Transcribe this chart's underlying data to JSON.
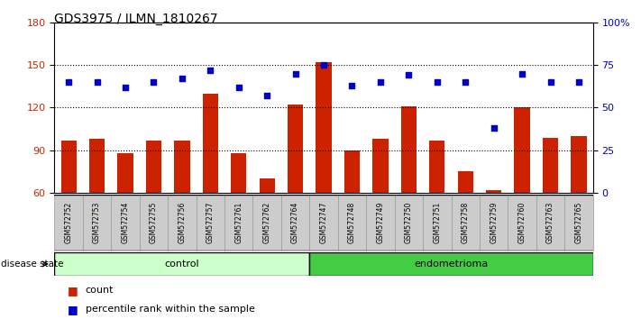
{
  "title": "GDS3975 / ILMN_1810267",
  "samples": [
    "GSM572752",
    "GSM572753",
    "GSM572754",
    "GSM572755",
    "GSM572756",
    "GSM572757",
    "GSM572761",
    "GSM572762",
    "GSM572764",
    "GSM572747",
    "GSM572748",
    "GSM572749",
    "GSM572750",
    "GSM572751",
    "GSM572758",
    "GSM572759",
    "GSM572760",
    "GSM572763",
    "GSM572765"
  ],
  "counts": [
    97,
    98,
    88,
    97,
    97,
    130,
    88,
    70,
    122,
    152,
    90,
    98,
    121,
    97,
    75,
    62,
    120,
    99,
    100
  ],
  "percentiles": [
    65,
    65,
    62,
    65,
    67,
    72,
    62,
    57,
    70,
    75,
    63,
    65,
    69,
    65,
    65,
    38,
    70,
    65,
    65
  ],
  "control_count": 9,
  "endometrioma_count": 10,
  "ylim_left": [
    60,
    180
  ],
  "ylim_right": [
    0,
    100
  ],
  "yticks_left": [
    60,
    90,
    120,
    150,
    180
  ],
  "yticks_right": [
    0,
    25,
    50,
    75,
    100
  ],
  "ytick_labels_right": [
    "0",
    "25",
    "50",
    "75",
    "100%"
  ],
  "bar_color": "#cc2200",
  "dot_color": "#0000cc",
  "control_bg": "#ccffcc",
  "endometrioma_bg": "#44cc44",
  "tick_label_bg": "#cccccc",
  "legend_items": [
    "count",
    "percentile rank within the sample"
  ]
}
